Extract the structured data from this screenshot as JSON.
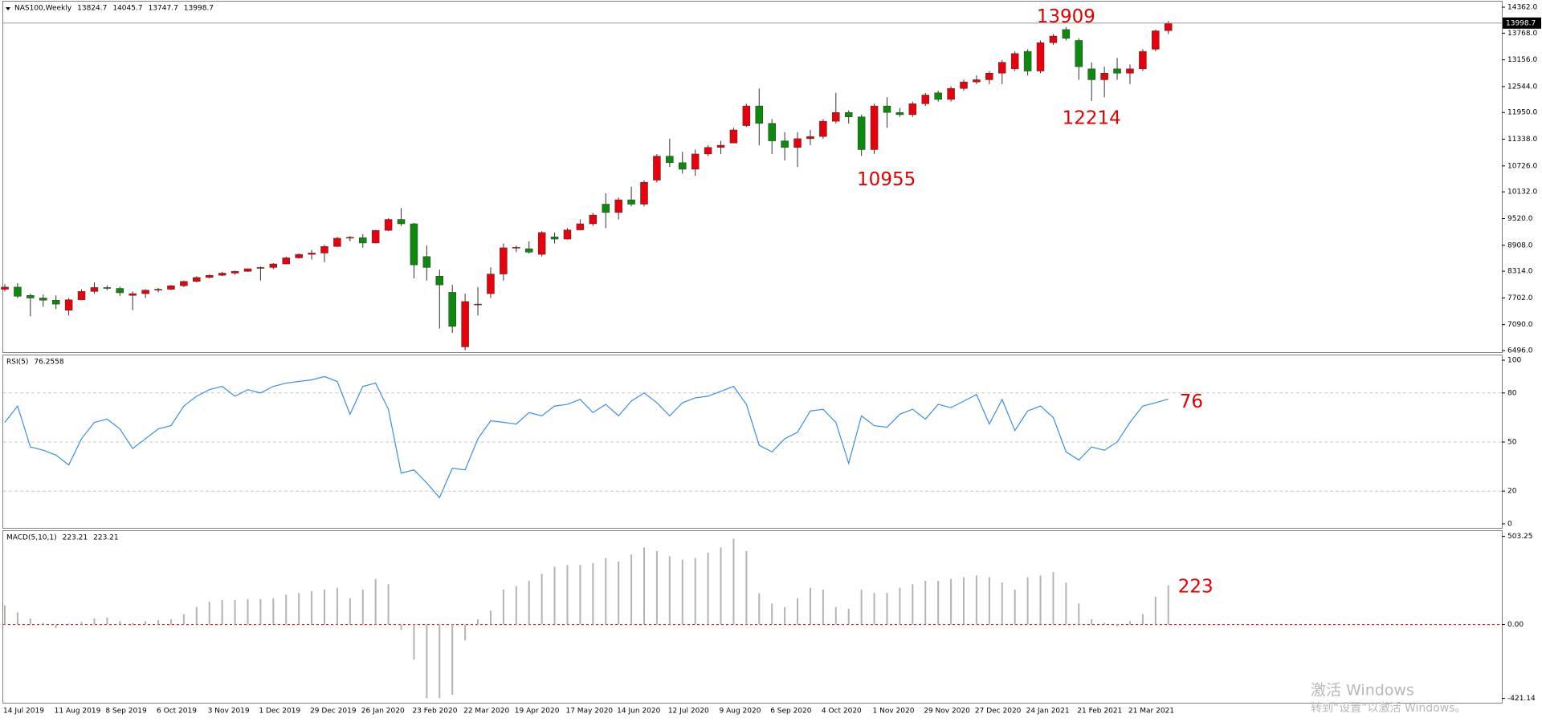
{
  "chart_data": [
    {
      "type": "candlestick",
      "title": "NAS100,Weekly",
      "categories": [
        "14 Jul 2019",
        null,
        null,
        null,
        "11 Aug 2019",
        null,
        null,
        null,
        "8 Sep 2019",
        null,
        null,
        null,
        "6 Oct 2019",
        null,
        null,
        null,
        "3 Nov 2019",
        null,
        null,
        null,
        "1 Dec 2019",
        null,
        null,
        null,
        "29 Dec 2019",
        null,
        null,
        null,
        "26 Jan 2020",
        null,
        null,
        null,
        "23 Feb 2020",
        null,
        null,
        null,
        "22 Mar 2020",
        null,
        null,
        null,
        "19 Apr 2020",
        null,
        null,
        null,
        "17 May 2020",
        null,
        null,
        null,
        "14 Jun 2020",
        null,
        null,
        null,
        "12 Jul 2020",
        null,
        null,
        null,
        "9 Aug 2020",
        null,
        null,
        null,
        "6 Sep 2020",
        null,
        null,
        null,
        "4 Oct 2020",
        null,
        null,
        null,
        "1 Nov 2020",
        null,
        null,
        null,
        "29 Nov 2020",
        null,
        null,
        null,
        "27 Dec 2020",
        null,
        null,
        null,
        "24 Jan 2021",
        null,
        null,
        null,
        "21 Feb 2021",
        null,
        null,
        null,
        "21 Mar 2021",
        null,
        null,
        null
      ],
      "open": [
        7900,
        7950,
        7760,
        7700,
        7650,
        7420,
        7660,
        7850,
        7940,
        7920,
        7760,
        7800,
        7880,
        7900,
        7980,
        8080,
        8170,
        8220,
        8270,
        8310,
        8380,
        8400,
        8480,
        8620,
        8700,
        8730,
        8880,
        9070,
        9080,
        8960,
        9250,
        9500,
        9400,
        8650,
        8200,
        7830,
        6580,
        7550,
        7800,
        8250,
        8850,
        8830,
        8700,
        9100,
        9050,
        9260,
        9400,
        9850,
        9660,
        9950,
        9850,
        10400,
        10950,
        10800,
        10650,
        11000,
        11150,
        11250,
        11650,
        12100,
        11700,
        11300,
        11150,
        11350,
        11400,
        11750,
        11950,
        11850,
        11100,
        12100,
        11950,
        11900,
        12150,
        12400,
        12250,
        12500,
        12650,
        12700,
        12850,
        12950,
        13350,
        12900,
        13550,
        13850,
        13600,
        12950,
        12700,
        12950,
        12850,
        12950,
        13400,
        13824.7
      ],
      "high": [
        8020,
        8040,
        7800,
        7780,
        7760,
        7700,
        7900,
        8060,
        7990,
        7960,
        7850,
        7900,
        7930,
        8000,
        8100,
        8200,
        8240,
        8300,
        8330,
        8380,
        8420,
        8500,
        8650,
        8720,
        8800,
        8920,
        9100,
        9120,
        9160,
        9260,
        9530,
        9760,
        9420,
        8900,
        8350,
        8000,
        7800,
        7950,
        8400,
        8950,
        8900,
        9000,
        9230,
        9200,
        9300,
        9500,
        9650,
        10100,
        10000,
        10250,
        10400,
        11000,
        11350,
        11050,
        11100,
        11200,
        11300,
        11600,
        12150,
        12500,
        11800,
        11500,
        11500,
        11550,
        11800,
        12400,
        12000,
        11900,
        12150,
        12300,
        12050,
        12200,
        12400,
        12450,
        12550,
        12700,
        12800,
        12900,
        13150,
        13350,
        13400,
        13600,
        13750,
        13909,
        13650,
        13100,
        13000,
        13200,
        13050,
        13400,
        13850,
        14045.7
      ],
      "low": [
        7850,
        7700,
        7280,
        7500,
        7450,
        7300,
        7650,
        7800,
        7880,
        7750,
        7420,
        7700,
        7830,
        7880,
        7950,
        8060,
        8150,
        8200,
        8230,
        8300,
        8100,
        8360,
        8470,
        8600,
        8580,
        8520,
        8870,
        9000,
        8850,
        8950,
        9230,
        9350,
        8150,
        8100,
        7000,
        6900,
        6500,
        7300,
        7700,
        8100,
        8750,
        8720,
        8650,
        8950,
        9040,
        9250,
        9350,
        9300,
        9500,
        9800,
        9800,
        10350,
        10700,
        10550,
        10500,
        10950,
        11000,
        11250,
        11620,
        11200,
        11000,
        10850,
        10700,
        11200,
        11350,
        11700,
        11700,
        10955,
        11000,
        11600,
        11850,
        11850,
        12100,
        12200,
        12200,
        12450,
        12600,
        12600,
        12600,
        12900,
        12800,
        12850,
        13500,
        13600,
        12700,
        12214,
        12300,
        12700,
        12600,
        12900,
        13350,
        13747.7
      ],
      "close": [
        7950,
        7740,
        7700,
        7650,
        7560,
        7660,
        7850,
        7940,
        7920,
        7820,
        7800,
        7880,
        7900,
        7980,
        8080,
        8170,
        8220,
        8270,
        8310,
        8370,
        8400,
        8480,
        8620,
        8700,
        8730,
        8880,
        9070,
        9090,
        8960,
        9250,
        9500,
        9400,
        8460,
        8400,
        8000,
        7050,
        7620,
        7560,
        8250,
        8850,
        8860,
        8750,
        9200,
        9050,
        9260,
        9400,
        9600,
        9660,
        9950,
        9850,
        10350,
        10950,
        10800,
        10650,
        11000,
        11150,
        11200,
        11550,
        12100,
        11700,
        11300,
        11150,
        11350,
        11400,
        11750,
        11950,
        11850,
        11100,
        12100,
        11950,
        11900,
        12150,
        12350,
        12250,
        12500,
        12650,
        12700,
        12850,
        13100,
        13300,
        12900,
        13550,
        13700,
        13650,
        13000,
        12700,
        12850,
        12850,
        12950,
        13350,
        13820,
        13998.7
      ],
      "up_color": "#e8000b",
      "down_color": "#0b8a0b",
      "wick_color": "#333333",
      "annotation_color": "#e00000",
      "ylim": [
        6496,
        14362
      ],
      "yticks": [
        {
          "value": 14362,
          "label": "14362.0"
        },
        {
          "value": 13768,
          "label": "13768.0"
        },
        {
          "value": 13156,
          "label": "13156.0"
        },
        {
          "value": 12544,
          "label": "12544.0"
        },
        {
          "value": 11950,
          "label": "11950.0"
        },
        {
          "value": 11338,
          "label": "11338.0"
        },
        {
          "value": 10726,
          "label": "10726.0"
        },
        {
          "value": 10132,
          "label": "10132.0"
        },
        {
          "value": 9520,
          "label": "9520.0"
        },
        {
          "value": 8908,
          "label": "8908.0"
        },
        {
          "value": 8314,
          "label": "8314.0"
        },
        {
          "value": 7702,
          "label": "7702.0"
        },
        {
          "value": 7090,
          "label": "7090.0"
        },
        {
          "value": 6496,
          "label": "6496.0"
        }
      ],
      "grid": false,
      "watermark": [
        "激活 Windows",
        "转到“设置”以激活 Windows。"
      ]
    },
    {
      "type": "line",
      "title": "RSI(5)",
      "color": "#3a8ee6",
      "annotation": "76",
      "annotation_color": "#e00000",
      "values": [
        62,
        72,
        47,
        45,
        42,
        36,
        52,
        62,
        64,
        58,
        46,
        52,
        58,
        60,
        72,
        78,
        82,
        84,
        78,
        82,
        80,
        84,
        86,
        87,
        88,
        90,
        87,
        67,
        84,
        86,
        70,
        31,
        33,
        25,
        16,
        34,
        33,
        52,
        63,
        62,
        61,
        68,
        66,
        72,
        73,
        76,
        68,
        73,
        66,
        75,
        80,
        74,
        66,
        74,
        77,
        78,
        81,
        84,
        73,
        48,
        44,
        52,
        56,
        69,
        70,
        62,
        37,
        66,
        60,
        59,
        67,
        70,
        64,
        73,
        71,
        75,
        79,
        61,
        76,
        57,
        69,
        72,
        65,
        44,
        39,
        47,
        45,
        50,
        62,
        72,
        74,
        76.2558
      ],
      "ylim": [
        0,
        100
      ],
      "yticks": [
        100,
        80,
        50,
        20,
        0
      ],
      "level_lines": true
    },
    {
      "type": "bar",
      "title": "MACD(5,10,1)",
      "color": "#b4b4b4",
      "zero_color": "#d00000",
      "annotation": "223",
      "annotation_color": "#e00000",
      "values": [
        110,
        70,
        35,
        10,
        -20,
        5,
        15,
        35,
        40,
        20,
        10,
        20,
        25,
        30,
        60,
        100,
        130,
        140,
        140,
        145,
        145,
        150,
        170,
        180,
        190,
        200,
        210,
        150,
        200,
        260,
        230,
        -30,
        -200,
        -420,
        -420,
        -400,
        -90,
        30,
        80,
        200,
        220,
        250,
        290,
        330,
        340,
        340,
        350,
        380,
        360,
        400,
        440,
        420,
        390,
        370,
        380,
        410,
        440,
        490,
        420,
        180,
        120,
        100,
        150,
        210,
        200,
        100,
        90,
        200,
        180,
        180,
        210,
        230,
        250,
        250,
        260,
        270,
        280,
        270,
        240,
        200,
        270,
        280,
        300,
        240,
        120,
        30,
        10,
        -10,
        20,
        60,
        160,
        223.21
      ],
      "ylim": [
        -421.14,
        503.25
      ],
      "yticks": [
        503.25,
        {
          "value": 0,
          "label": "0.00"
        },
        -421.14
      ]
    }
  ]
}
